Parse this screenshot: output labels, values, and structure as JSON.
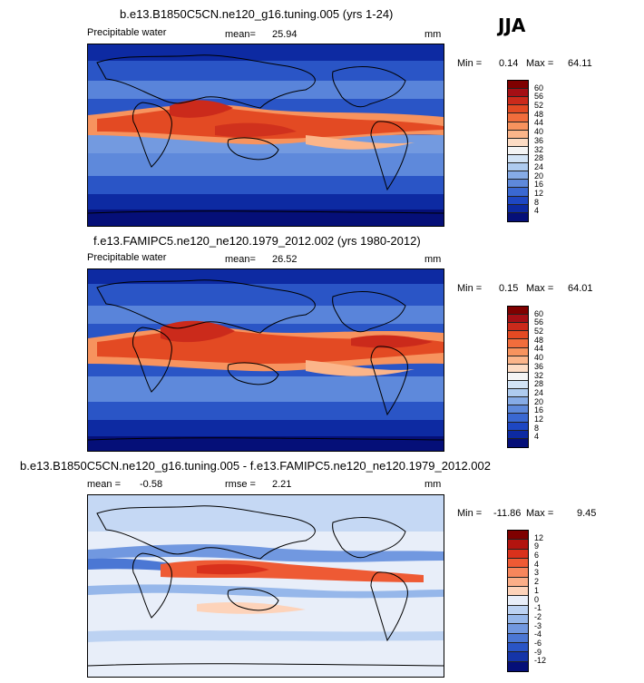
{
  "season": "JJA",
  "panels": [
    {
      "title": "b.e13.B1850C5CN.ne120_g16.tuning.005 (yrs 1-24)",
      "variable": "Precipitable water",
      "mean_label": "mean=",
      "mean_value": "25.94",
      "unit": "mm",
      "min_label": "Min =",
      "min_value": "0.14",
      "max_label": "Max =",
      "max_value": "64.11",
      "colorbar_ticks": [
        "60",
        "56",
        "52",
        "48",
        "44",
        "40",
        "36",
        "32",
        "28",
        "24",
        "20",
        "16",
        "12",
        "8",
        "4"
      ]
    },
    {
      "title": "f.e13.FAMIPC5.ne120_ne120.1979_2012.002 (yrs 1980-2012)",
      "variable": "Precipitable water",
      "mean_label": "mean=",
      "mean_value": "26.52",
      "unit": "mm",
      "min_label": "Min =",
      "min_value": "0.15",
      "max_label": "Max =",
      "max_value": "64.01",
      "colorbar_ticks": [
        "60",
        "56",
        "52",
        "48",
        "44",
        "40",
        "36",
        "32",
        "28",
        "24",
        "20",
        "16",
        "12",
        "8",
        "4"
      ]
    },
    {
      "title": "b.e13.B1850C5CN.ne120_g16.tuning.005 - f.e13.FAMIPC5.ne120_ne120.1979_2012.002",
      "mean_label": "mean =",
      "mean_value": "-0.58",
      "rmse_label": "rmse =",
      "rmse_value": "2.21",
      "unit": "mm",
      "min_label": "Min =",
      "min_value": "-11.86",
      "max_label": "Max =",
      "max_value": "9.45",
      "colorbar_ticks": [
        "12",
        "9",
        "6",
        "4",
        "3",
        "2",
        "1",
        "0",
        "-1",
        "-2",
        "-3",
        "-4",
        "-6",
        "-9",
        "-12"
      ]
    }
  ],
  "colors": {
    "abs_scale": [
      "#7f0000",
      "#a50f15",
      "#cb2a1b",
      "#e34a23",
      "#f16d3c",
      "#f7935e",
      "#fbb58a",
      "#fddcc4",
      "#f4f4f4",
      "#d2e3f5",
      "#aecbef",
      "#86abe6",
      "#5e89db",
      "#3a68d2",
      "#1e47c3",
      "#0d2aa2",
      "#050f78"
    ],
    "diff_scale": [
      "#7f0000",
      "#b2140f",
      "#d9311c",
      "#ee5a34",
      "#f7865c",
      "#fbae88",
      "#fdd3ba",
      "#e8eef9",
      "#bcd2f2",
      "#96b7ea",
      "#7198e0",
      "#4b77d4",
      "#2a55c6",
      "#1535a8",
      "#050f78"
    ]
  }
}
